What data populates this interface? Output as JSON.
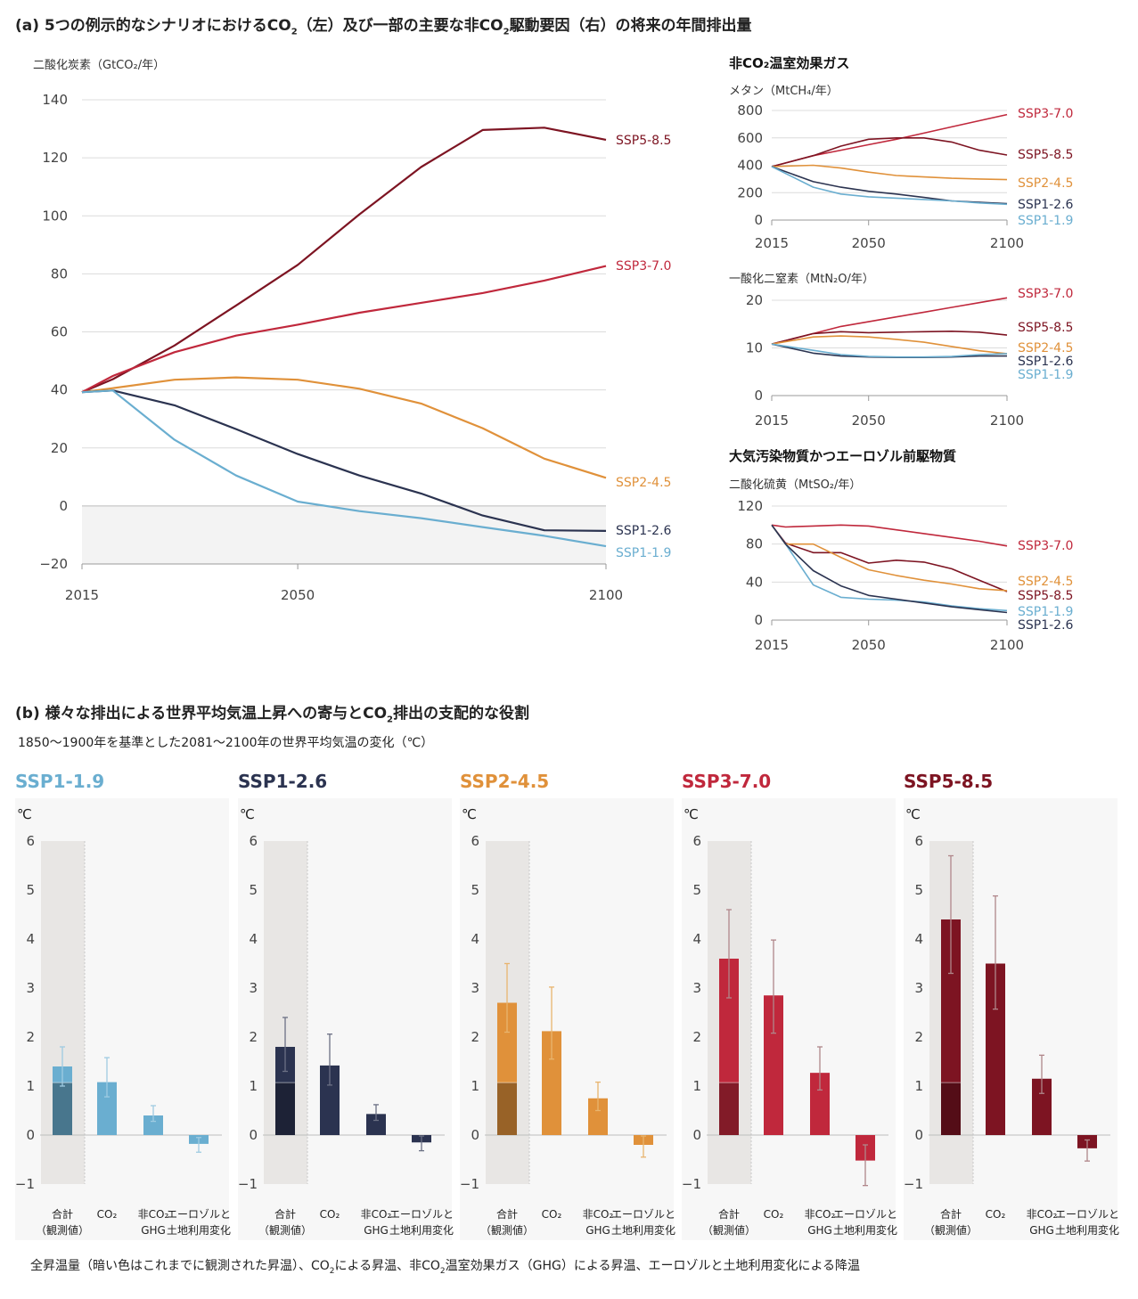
{
  "colors": {
    "SSP1-1.9": "#6aaed0",
    "SSP1-2.6": "#2b3350",
    "SSP2-4.5": "#e0913a",
    "SSP3-7.0": "#c0283c",
    "SSP5-8.5": "#7d1422"
  },
  "panel_a": {
    "title_pre": "(a) 5つの例示的なシナリオにおけるCO",
    "title_sub": "2",
    "title_mid": "（左）及び一部の主要な非CO",
    "title_sub2": "2",
    "title_post": "駆動要因（右）の将来の年間排出量"
  },
  "panel_b": {
    "title_pre": "(b) 様々な排出による世界平均気温上昇への寄与とCO",
    "title_sub": "2",
    "title_post": "排出の支配的な役割",
    "subtitle": "1850〜1900年を基準とした2081〜2100年の世界平均気温の変化（℃）",
    "caption_parts": [
      "全昇温量（暗い色はこれまでに観測された昇温）、CO",
      "2",
      "による昇温、非CO",
      "2",
      "温室効果ガス（GHG）による昇温、エーロゾルと土地利用変化による降温"
    ]
  },
  "chart_data": [
    {
      "type": "line",
      "id": "co2",
      "ylabel": "二酸化炭素（GtCO₂/年）",
      "ylim": [
        -20,
        140
      ],
      "yticks": [
        -20,
        0,
        20,
        40,
        60,
        80,
        100,
        120,
        140
      ],
      "xlim": [
        2015,
        2100
      ],
      "xticks": [
        2015,
        2050,
        2100
      ],
      "series": [
        {
          "name": "SSP5-8.5",
          "x": [
            2015,
            2020,
            2030,
            2040,
            2050,
            2060,
            2070,
            2080,
            2090,
            2100
          ],
          "y": [
            39.2,
            43.7,
            55.3,
            69.1,
            83.1,
            100.5,
            116.8,
            129.6,
            130.4,
            126.2
          ]
        },
        {
          "name": "SSP3-7.0",
          "x": [
            2015,
            2020,
            2030,
            2040,
            2050,
            2060,
            2070,
            2080,
            2090,
            2100
          ],
          "y": [
            39.2,
            44.8,
            53.0,
            58.7,
            62.5,
            66.6,
            70.0,
            73.4,
            77.7,
            82.7
          ]
        },
        {
          "name": "SSP2-4.5",
          "x": [
            2015,
            2020,
            2030,
            2040,
            2050,
            2060,
            2070,
            2080,
            2090,
            2100
          ],
          "y": [
            39.2,
            40.6,
            43.5,
            44.3,
            43.5,
            40.4,
            35.3,
            26.8,
            16.3,
            9.7
          ]
        },
        {
          "name": "SSP1-2.6",
          "x": [
            2015,
            2020,
            2030,
            2040,
            2050,
            2060,
            2070,
            2080,
            2090,
            2100
          ],
          "y": [
            39.2,
            39.8,
            34.7,
            26.5,
            17.9,
            10.5,
            4.3,
            -3.3,
            -8.4,
            -8.6
          ]
        },
        {
          "name": "SSP1-1.9",
          "x": [
            2015,
            2020,
            2030,
            2040,
            2050,
            2060,
            2070,
            2080,
            2090,
            2100
          ],
          "y": [
            39.2,
            39.8,
            22.8,
            10.5,
            1.5,
            -1.8,
            -4.2,
            -7.3,
            -10.3,
            -13.9
          ]
        }
      ]
    },
    {
      "type": "line",
      "id": "ch4",
      "title": "非CO₂温室効果ガス",
      "ylabel": "メタン（MtCH₄/年）",
      "ylim": [
        0,
        800
      ],
      "yticks": [
        0,
        200,
        400,
        600,
        800
      ],
      "xlim": [
        2015,
        2100
      ],
      "xticks": [
        2015,
        2050,
        2100
      ],
      "series": [
        {
          "name": "SSP3-7.0",
          "x": [
            2015,
            2030,
            2040,
            2050,
            2060,
            2070,
            2080,
            2090,
            2100
          ],
          "y": [
            390,
            470,
            510,
            550,
            590,
            635,
            680,
            725,
            770
          ]
        },
        {
          "name": "SSP5-8.5",
          "x": [
            2015,
            2030,
            2040,
            2050,
            2060,
            2070,
            2080,
            2090,
            2100
          ],
          "y": [
            390,
            470,
            540,
            590,
            600,
            600,
            570,
            510,
            475
          ]
        },
        {
          "name": "SSP2-4.5",
          "x": [
            2015,
            2030,
            2040,
            2050,
            2060,
            2070,
            2080,
            2090,
            2100
          ],
          "y": [
            390,
            400,
            380,
            350,
            325,
            315,
            305,
            300,
            295
          ]
        },
        {
          "name": "SSP1-2.6",
          "x": [
            2015,
            2030,
            2040,
            2050,
            2060,
            2070,
            2080,
            2090,
            2100
          ],
          "y": [
            390,
            280,
            240,
            210,
            190,
            165,
            140,
            130,
            120
          ]
        },
        {
          "name": "SSP1-1.9",
          "x": [
            2015,
            2030,
            2040,
            2050,
            2060,
            2070,
            2080,
            2090,
            2100
          ],
          "y": [
            390,
            240,
            190,
            170,
            160,
            150,
            140,
            125,
            115
          ]
        }
      ]
    },
    {
      "type": "line",
      "id": "n2o",
      "ylabel": "一酸化二窒素（MtN₂O/年）",
      "ylim": [
        0,
        20
      ],
      "yticks": [
        0,
        10,
        20
      ],
      "xlim": [
        2015,
        2100
      ],
      "xticks": [
        2015,
        2050,
        2100
      ],
      "series": [
        {
          "name": "SSP3-7.0",
          "x": [
            2015,
            2030,
            2040,
            2050,
            2060,
            2070,
            2080,
            2090,
            2100
          ],
          "y": [
            10.8,
            13.0,
            14.5,
            15.5,
            16.5,
            17.5,
            18.5,
            19.5,
            20.5
          ]
        },
        {
          "name": "SSP5-8.5",
          "x": [
            2015,
            2030,
            2040,
            2050,
            2060,
            2070,
            2080,
            2090,
            2100
          ],
          "y": [
            10.8,
            13.0,
            13.4,
            13.2,
            13.3,
            13.4,
            13.5,
            13.3,
            12.7
          ]
        },
        {
          "name": "SSP2-4.5",
          "x": [
            2015,
            2030,
            2040,
            2050,
            2060,
            2070,
            2080,
            2090,
            2100
          ],
          "y": [
            10.8,
            12.3,
            12.5,
            12.3,
            11.8,
            11.2,
            10.3,
            9.4,
            8.8
          ]
        },
        {
          "name": "SSP1-2.6",
          "x": [
            2015,
            2030,
            2040,
            2050,
            2060,
            2070,
            2080,
            2090,
            2100
          ],
          "y": [
            10.8,
            8.9,
            8.3,
            8.1,
            8.0,
            8.0,
            8.1,
            8.3,
            8.3
          ]
        },
        {
          "name": "SSP1-1.9",
          "x": [
            2015,
            2030,
            2040,
            2050,
            2060,
            2070,
            2080,
            2090,
            2100
          ],
          "y": [
            10.8,
            9.5,
            8.6,
            8.2,
            8.1,
            8.1,
            8.2,
            8.6,
            8.8
          ]
        }
      ]
    },
    {
      "type": "line",
      "id": "so2",
      "title": "大気汚染物質かつエーロゾル前駆物質",
      "ylabel": "二酸化硫黄（MtSO₂/年）",
      "ylim": [
        0,
        120
      ],
      "yticks": [
        0,
        40,
        80,
        120
      ],
      "xlim": [
        2015,
        2100
      ],
      "xticks": [
        2015,
        2050,
        2100
      ],
      "series": [
        {
          "name": "SSP3-7.0",
          "x": [
            2015,
            2020,
            2030,
            2040,
            2050,
            2060,
            2070,
            2080,
            2090,
            2100
          ],
          "y": [
            100,
            98,
            99,
            100,
            99,
            95,
            91,
            87,
            83,
            78
          ]
        },
        {
          "name": "SSP5-8.5",
          "x": [
            2015,
            2020,
            2030,
            2040,
            2050,
            2060,
            2070,
            2080,
            2090,
            2100
          ],
          "y": [
            100,
            81,
            71,
            71,
            60,
            63,
            61,
            54,
            42,
            30
          ]
        },
        {
          "name": "SSP2-4.5",
          "x": [
            2015,
            2020,
            2030,
            2040,
            2050,
            2060,
            2070,
            2080,
            2090,
            2100
          ],
          "y": [
            100,
            80,
            80,
            66,
            53,
            47,
            42,
            38,
            33,
            31
          ]
        },
        {
          "name": "SSP1-1.9",
          "x": [
            2015,
            2020,
            2030,
            2040,
            2050,
            2060,
            2070,
            2080,
            2090,
            2100
          ],
          "y": [
            100,
            80,
            37,
            24,
            22,
            21,
            19,
            15,
            12,
            10
          ]
        },
        {
          "name": "SSP1-2.6",
          "x": [
            2015,
            2020,
            2030,
            2040,
            2050,
            2060,
            2070,
            2080,
            2090,
            2100
          ],
          "y": [
            100,
            80,
            52,
            36,
            26,
            22,
            18,
            14,
            11,
            8
          ]
        }
      ]
    },
    {
      "type": "bar",
      "id": "warming",
      "unit": "℃",
      "ylim": [
        -1,
        6
      ],
      "yticks": [
        -1,
        0,
        1,
        2,
        3,
        4,
        5,
        6
      ],
      "observed_warming": 1.07,
      "categories": [
        {
          "l1": "合計",
          "l2": "（観測値）"
        },
        {
          "l1": "CO₂",
          "l2": ""
        },
        {
          "l1": "非CO₂",
          "l2": "GHG"
        },
        {
          "l1": "エーロゾルと",
          "l2": "土地利用変化"
        }
      ],
      "scenarios": [
        {
          "name": "SSP1-1.9",
          "values": [
            1.4,
            1.08,
            0.4,
            -0.18
          ],
          "low": [
            1.0,
            0.78,
            0.28,
            -0.35
          ],
          "high": [
            1.8,
            1.58,
            0.6,
            -0.05
          ]
        },
        {
          "name": "SSP1-2.6",
          "values": [
            1.8,
            1.42,
            0.43,
            -0.15
          ],
          "low": [
            1.3,
            1.02,
            0.3,
            -0.32
          ],
          "high": [
            2.4,
            2.06,
            0.62,
            -0.02
          ]
        },
        {
          "name": "SSP2-4.5",
          "values": [
            2.7,
            2.12,
            0.75,
            -0.2
          ],
          "low": [
            2.1,
            1.55,
            0.5,
            -0.45
          ],
          "high": [
            3.5,
            3.02,
            1.08,
            -0.02
          ]
        },
        {
          "name": "SSP3-7.0",
          "values": [
            3.6,
            2.85,
            1.27,
            -0.52
          ],
          "low": [
            2.8,
            2.08,
            0.92,
            -1.03
          ],
          "high": [
            4.6,
            3.98,
            1.8,
            -0.2
          ]
        },
        {
          "name": "SSP5-8.5",
          "values": [
            4.4,
            3.5,
            1.15,
            -0.27
          ],
          "low": [
            3.3,
            2.57,
            0.85,
            -0.53
          ],
          "high": [
            5.7,
            4.88,
            1.63,
            -0.1
          ]
        }
      ]
    }
  ]
}
